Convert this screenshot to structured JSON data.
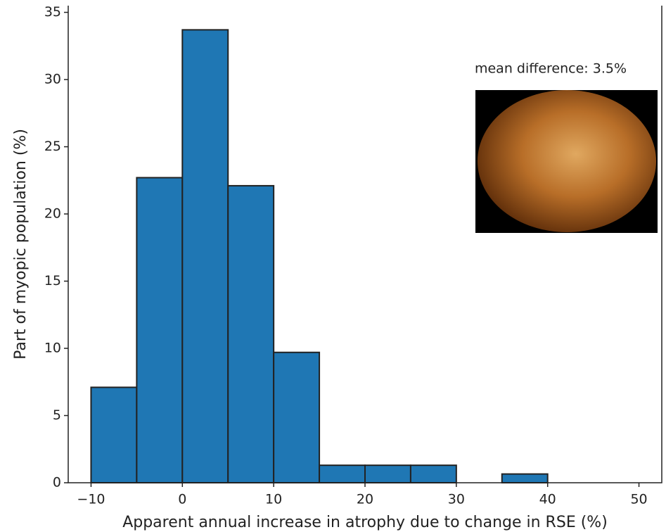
{
  "chart_data": {
    "type": "histogram",
    "xlabel": "Apparent annual increase in atrophy due to change in RSE (%)",
    "ylabel": "Part of myopic population (%)",
    "annotation": "mean difference: 3.5%",
    "bins": [
      -10,
      -5,
      0,
      5,
      10,
      15,
      20,
      25,
      30,
      35,
      40
    ],
    "values": [
      7.1,
      22.7,
      33.7,
      22.1,
      9.7,
      1.3,
      1.3,
      1.3,
      0,
      0.65
    ],
    "color": "#1f77b4",
    "xlim": [
      -12.5,
      52.5
    ],
    "ylim": [
      0,
      35.5
    ],
    "xticks": [
      {
        "value": -10,
        "label": "−10"
      },
      0,
      10,
      20,
      30,
      40,
      50
    ],
    "yticks": [
      0,
      5,
      10,
      15,
      20,
      25,
      30,
      35
    ]
  }
}
